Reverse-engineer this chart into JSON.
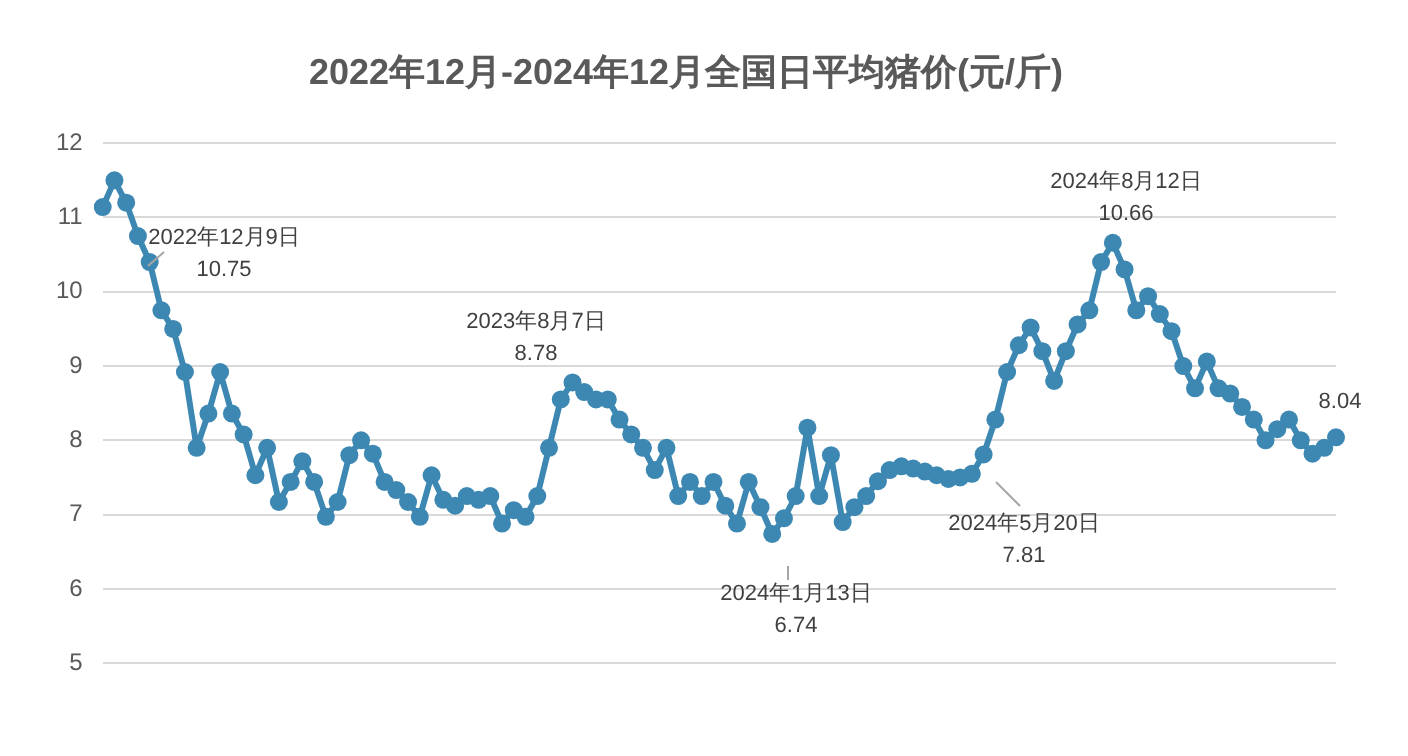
{
  "chart_data": {
    "type": "line",
    "title": "2022年12月-2024年12月全国日平均猪价(元/斤)",
    "categories": [
      null,
      null,
      null,
      null,
      null,
      null,
      null,
      null,
      null,
      null,
      null,
      null,
      null,
      null,
      null,
      null,
      null,
      null,
      null,
      null,
      null,
      null,
      null,
      null,
      null,
      null,
      null,
      null,
      null,
      null,
      null,
      null,
      null,
      null,
      null,
      null,
      null,
      null,
      null,
      null,
      null,
      null,
      null,
      null,
      null,
      null,
      null,
      null,
      null,
      null,
      null,
      null,
      null,
      null,
      null,
      null,
      null,
      null,
      null,
      null,
      null,
      null,
      null,
      null,
      null,
      null,
      null,
      null,
      null,
      null,
      null,
      null,
      null,
      null,
      null,
      null,
      null,
      null,
      null,
      null,
      null,
      null,
      null,
      null,
      null,
      null,
      null,
      null,
      null,
      null,
      null,
      null,
      null,
      null,
      null,
      null,
      null,
      null,
      null,
      null,
      null,
      null,
      null,
      null,
      null,
      null
    ],
    "series": [
      {
        "color": "#3d88b3",
        "values": [
          11.14,
          11.5,
          11.2,
          10.75,
          10.4,
          9.75,
          9.5,
          8.92,
          7.9,
          8.36,
          8.92,
          8.36,
          8.08,
          7.53,
          7.9,
          7.17,
          7.44,
          7.72,
          7.44,
          6.97,
          7.17,
          7.8,
          8.0,
          7.82,
          7.44,
          7.33,
          7.17,
          6.97,
          7.53,
          7.2,
          7.12,
          7.25,
          7.2,
          7.25,
          6.88,
          7.06,
          6.97,
          7.25,
          7.9,
          8.55,
          8.78,
          8.65,
          8.55,
          8.55,
          8.28,
          8.08,
          7.9,
          7.6,
          7.9,
          7.25,
          7.44,
          7.25,
          7.44,
          7.12,
          6.88,
          7.44,
          7.1,
          6.74,
          6.95,
          7.25,
          8.17,
          7.25,
          7.8,
          6.9,
          7.1,
          7.25,
          7.45,
          7.6,
          7.65,
          7.62,
          7.58,
          7.53,
          7.48,
          7.5,
          7.55,
          7.81,
          8.28,
          8.92,
          9.28,
          9.52,
          9.2,
          8.8,
          9.2,
          9.56,
          9.75,
          10.4,
          10.66,
          10.3,
          9.75,
          9.94,
          9.7,
          9.47,
          9.0,
          8.7,
          9.06,
          8.7,
          8.63,
          8.45,
          8.28,
          8.0,
          8.15,
          8.28,
          8.0,
          7.82,
          7.9,
          8.04
        ]
      }
    ],
    "ylim": [
      5,
      12
    ],
    "yticks": [
      5,
      6,
      7,
      8,
      9,
      10,
      11,
      12
    ],
    "grid": "y",
    "marker": "circle",
    "line_style": "solid",
    "legend": false,
    "annotations": [
      "2022年12月9日\n10.75",
      "2023年8月7日\n8.78",
      "2024年1月13日\n6.74",
      "2024年5月20日\n7.81",
      "2024年8月12日\n10.66",
      "8.04"
    ]
  }
}
